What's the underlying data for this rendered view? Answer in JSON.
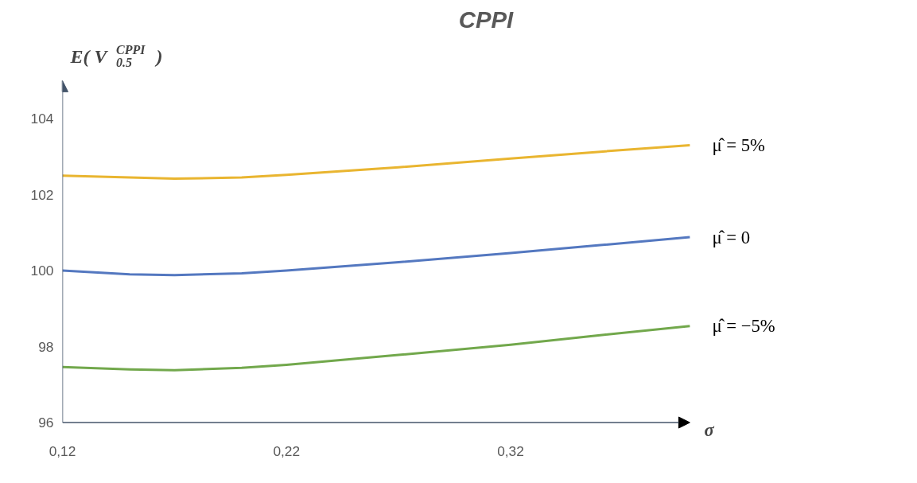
{
  "chart_data": {
    "type": "line",
    "title": "CPPI",
    "xlabel": "σ",
    "ylabel": "E( V$_{0.5}$$^{CPPI}$ )",
    "x": [
      0.12,
      0.15,
      0.17,
      0.2,
      0.22,
      0.27,
      0.32,
      0.36,
      0.4
    ],
    "series": [
      {
        "name": "μ̂ = 5%",
        "color": "#e9b530",
        "values": [
          102.5,
          102.45,
          102.42,
          102.45,
          102.52,
          102.72,
          102.95,
          103.13,
          103.3
        ]
      },
      {
        "name": "μ̂ = 0",
        "color": "#5478c0",
        "values": [
          100.0,
          99.9,
          99.88,
          99.93,
          100.0,
          100.22,
          100.46,
          100.67,
          100.88
        ]
      },
      {
        "name": "μ̂ = −5%",
        "color": "#72a84c",
        "values": [
          97.46,
          97.4,
          97.38,
          97.44,
          97.52,
          97.78,
          98.05,
          98.3,
          98.54
        ]
      }
    ],
    "xlim": [
      0.12,
      0.4
    ],
    "ylim": [
      96,
      105
    ],
    "xticks": [
      {
        "value": 0.12,
        "label": "0,12"
      },
      {
        "value": 0.22,
        "label": "0,22"
      },
      {
        "value": 0.32,
        "label": "0,32"
      }
    ],
    "yticks": [
      96,
      98,
      100,
      102,
      104
    ],
    "grid": false,
    "legend": false,
    "marker": "none",
    "line_style": "solid"
  }
}
